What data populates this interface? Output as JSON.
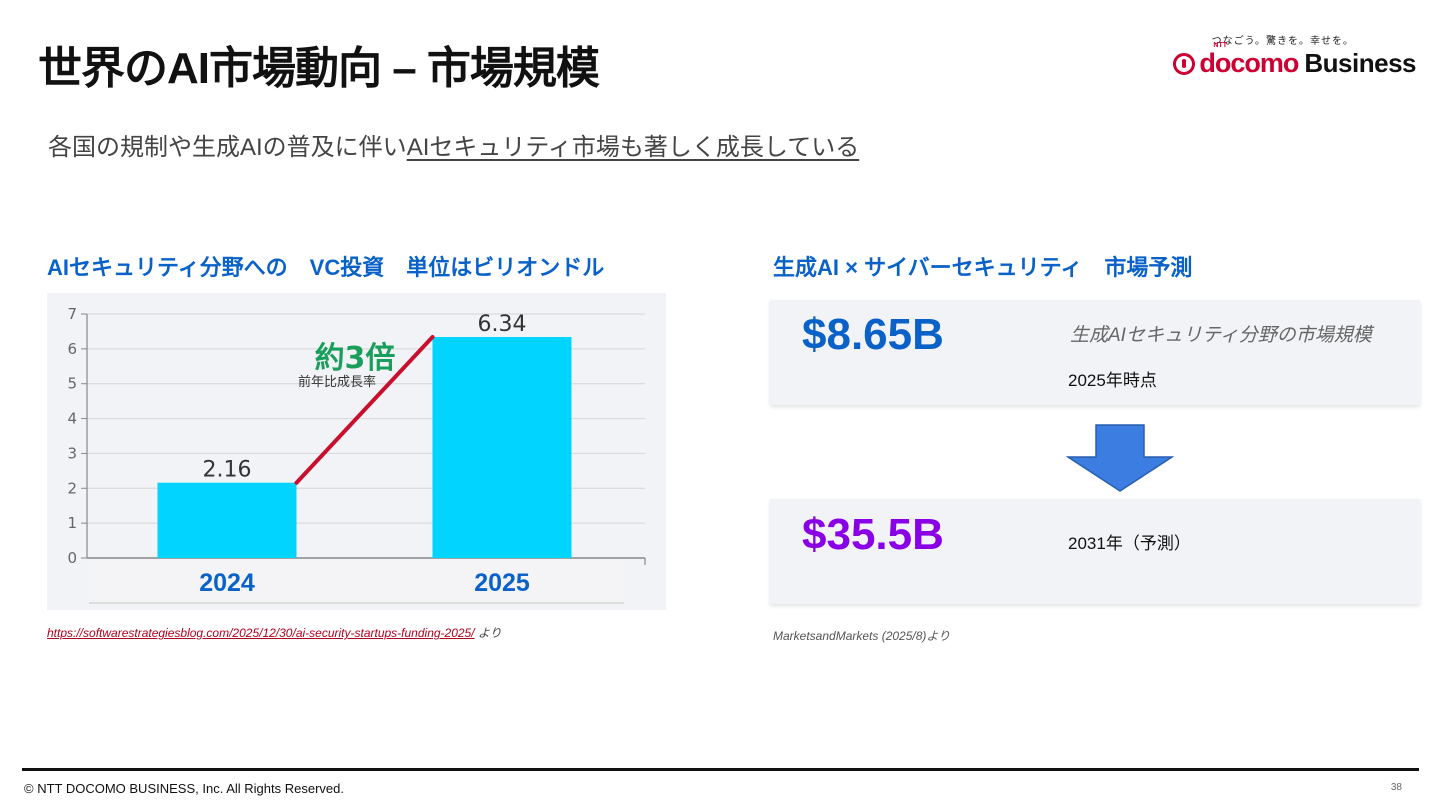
{
  "header": {
    "title": "世界のAI市場動向 – 市場規模",
    "logo": {
      "tagline": "つなごう。驚きを。幸せを。",
      "ntt": "NTT",
      "docomo": "docomo",
      "business": "Business"
    }
  },
  "subtitle": {
    "plain": "各国の規制や生成AIの普及に伴い",
    "underlined": "AIセキュリティ市場も著しく成長している"
  },
  "left": {
    "title": "AIセキュリティ分野への　VC投資　単位はビリオンドル",
    "annotation": {
      "multiplier": "約3倍",
      "caption": "前年比成長率"
    },
    "source": {
      "url": "https://softwarestrategiesblog.com/2025/12/30/ai-security-startups-funding-2025/",
      "suffix": " より"
    }
  },
  "chart_data": {
    "type": "bar",
    "categories": [
      "2024",
      "2025"
    ],
    "values": [
      2.16,
      6.34
    ],
    "data_labels": [
      "2.16",
      "6.34"
    ],
    "ylim": [
      0,
      7
    ],
    "yticks": [
      "0",
      "1",
      "2",
      "3",
      "4",
      "5",
      "6",
      "7"
    ],
    "grid": true,
    "bar_color": "#00d4ff",
    "trend_line_color": "#c8102e",
    "category_label_color": "#0a62c9"
  },
  "right": {
    "title": "生成AI × サイバーセキュリティ　市場予測",
    "card1": {
      "value": "$8.65B",
      "description": "生成AIセキュリティ分野の市場規模",
      "time": "2025年時点",
      "color": "#0a62c9"
    },
    "card2": {
      "value": "$35.5B",
      "time": "2031年（予測）",
      "color": "#8a00e6"
    },
    "arrow_color": "#3b7de0",
    "source": "MarketsandMarkets (2025/8)より"
  },
  "footer": {
    "copyright": "© NTT DOCOMO BUSINESS, Inc. All Rights Reserved.",
    "page": "38"
  }
}
